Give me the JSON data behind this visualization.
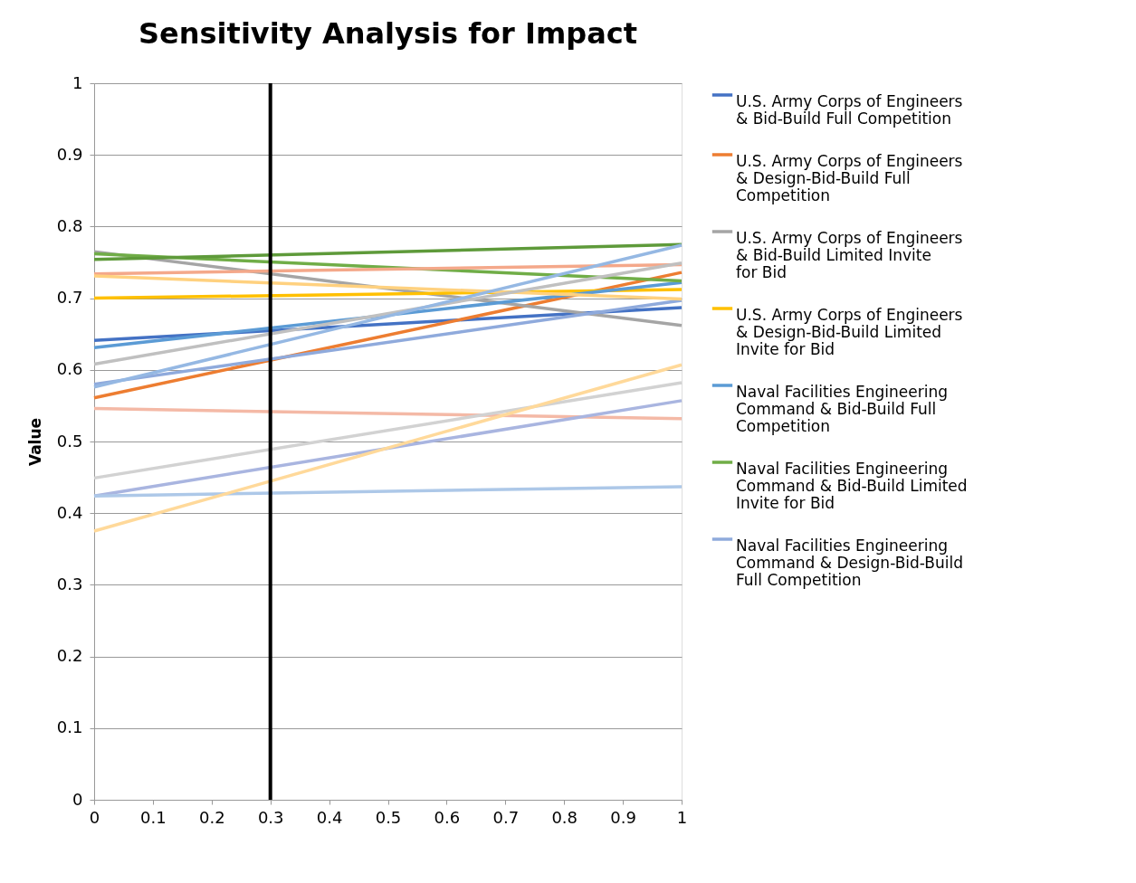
{
  "chart_data": {
    "type": "line",
    "title": "Sensitivity Analysis for Impact",
    "ylabel": "Value",
    "x": [
      0,
      1
    ],
    "xlim": [
      0,
      1
    ],
    "ylim": [
      0,
      1
    ],
    "xticks": [
      0,
      0.1,
      0.2,
      0.3,
      0.4,
      0.5,
      0.6,
      0.7,
      0.8,
      0.9,
      1
    ],
    "yticks": [
      0,
      0.1,
      0.2,
      0.3,
      0.4,
      0.5,
      0.6,
      0.7,
      0.8,
      0.9,
      1
    ],
    "grid": "y",
    "legend": "right",
    "marker": "none",
    "line_style": "solid",
    "series": [
      {
        "name": "U.S. Army Corps of Engineers & Bid-Build Full Competition",
        "color": "#4472c4",
        "values": [
          0.641,
          0.687
        ]
      },
      {
        "name": "U.S. Army Corps of Engineers & Design-Bid-Build Full Competition",
        "color": "#ed7d31",
        "values": [
          0.561,
          0.736
        ]
      },
      {
        "name": "U.S. Army Corps of Engineers & Bid-Build Limited Invite for Bid",
        "color": "#a5a5a5",
        "values": [
          0.765,
          0.662
        ]
      },
      {
        "name": "U.S. Army Corps of Engineers & Design-Bid-Build Limited Invite for Bid",
        "color": "#ffc000",
        "values": [
          0.7,
          0.712
        ]
      },
      {
        "name": "Naval Facilities Engineering Command & Bid-Build Full Competition",
        "color": "#5b9bd5",
        "values": [
          0.631,
          0.722
        ]
      },
      {
        "name": "Naval Facilities Engineering Command & Bid-Build Limited Invite for Bid",
        "color": "#70ad47",
        "values": [
          0.762,
          0.724
        ]
      },
      {
        "name": "Naval Facilities Engineering Command & Design-Bid-Build Full Competition",
        "color": "#8faadc",
        "values": [
          0.58,
          0.697
        ]
      },
      {
        "color": "#5e9a3a",
        "values": [
          0.754,
          0.775
        ]
      },
      {
        "color": "#f4a88a",
        "values": [
          0.734,
          0.747
        ]
      },
      {
        "color": "#ffd17f",
        "values": [
          0.731,
          0.699
        ]
      },
      {
        "color": "#c0c0c0",
        "values": [
          0.608,
          0.749
        ]
      },
      {
        "color": "#95b8e3",
        "values": [
          0.576,
          0.774
        ]
      },
      {
        "color": "#f4b9a6",
        "values": [
          0.546,
          0.532
        ]
      },
      {
        "color": "#d2d2d2",
        "values": [
          0.449,
          0.582
        ]
      },
      {
        "color": "#a9b5e0",
        "values": [
          0.424,
          0.557
        ]
      },
      {
        "color": "#adc8e8",
        "values": [
          0.424,
          0.437
        ]
      },
      {
        "color": "#ffd99a",
        "values": [
          0.375,
          0.607
        ]
      }
    ],
    "ref_lines": [
      {
        "axis": "x",
        "value": 0.3,
        "color": "#000000",
        "line_style": "solid"
      }
    ]
  }
}
